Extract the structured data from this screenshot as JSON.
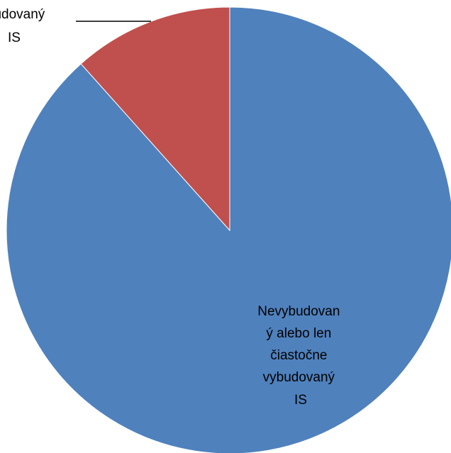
{
  "chart_data": {
    "type": "pie",
    "title": "",
    "legend": "none",
    "slices": [
      {
        "value": 88.4,
        "color": "#4F81BD",
        "label_lines": [
          "Nevybudovan",
          "ý alebo len",
          "čiastočne",
          "vybudovaný",
          "IS"
        ]
      },
      {
        "value": 11.6,
        "color": "#C0504D",
        "label_lines": [
          "udovaný",
          "IS"
        ]
      }
    ]
  }
}
